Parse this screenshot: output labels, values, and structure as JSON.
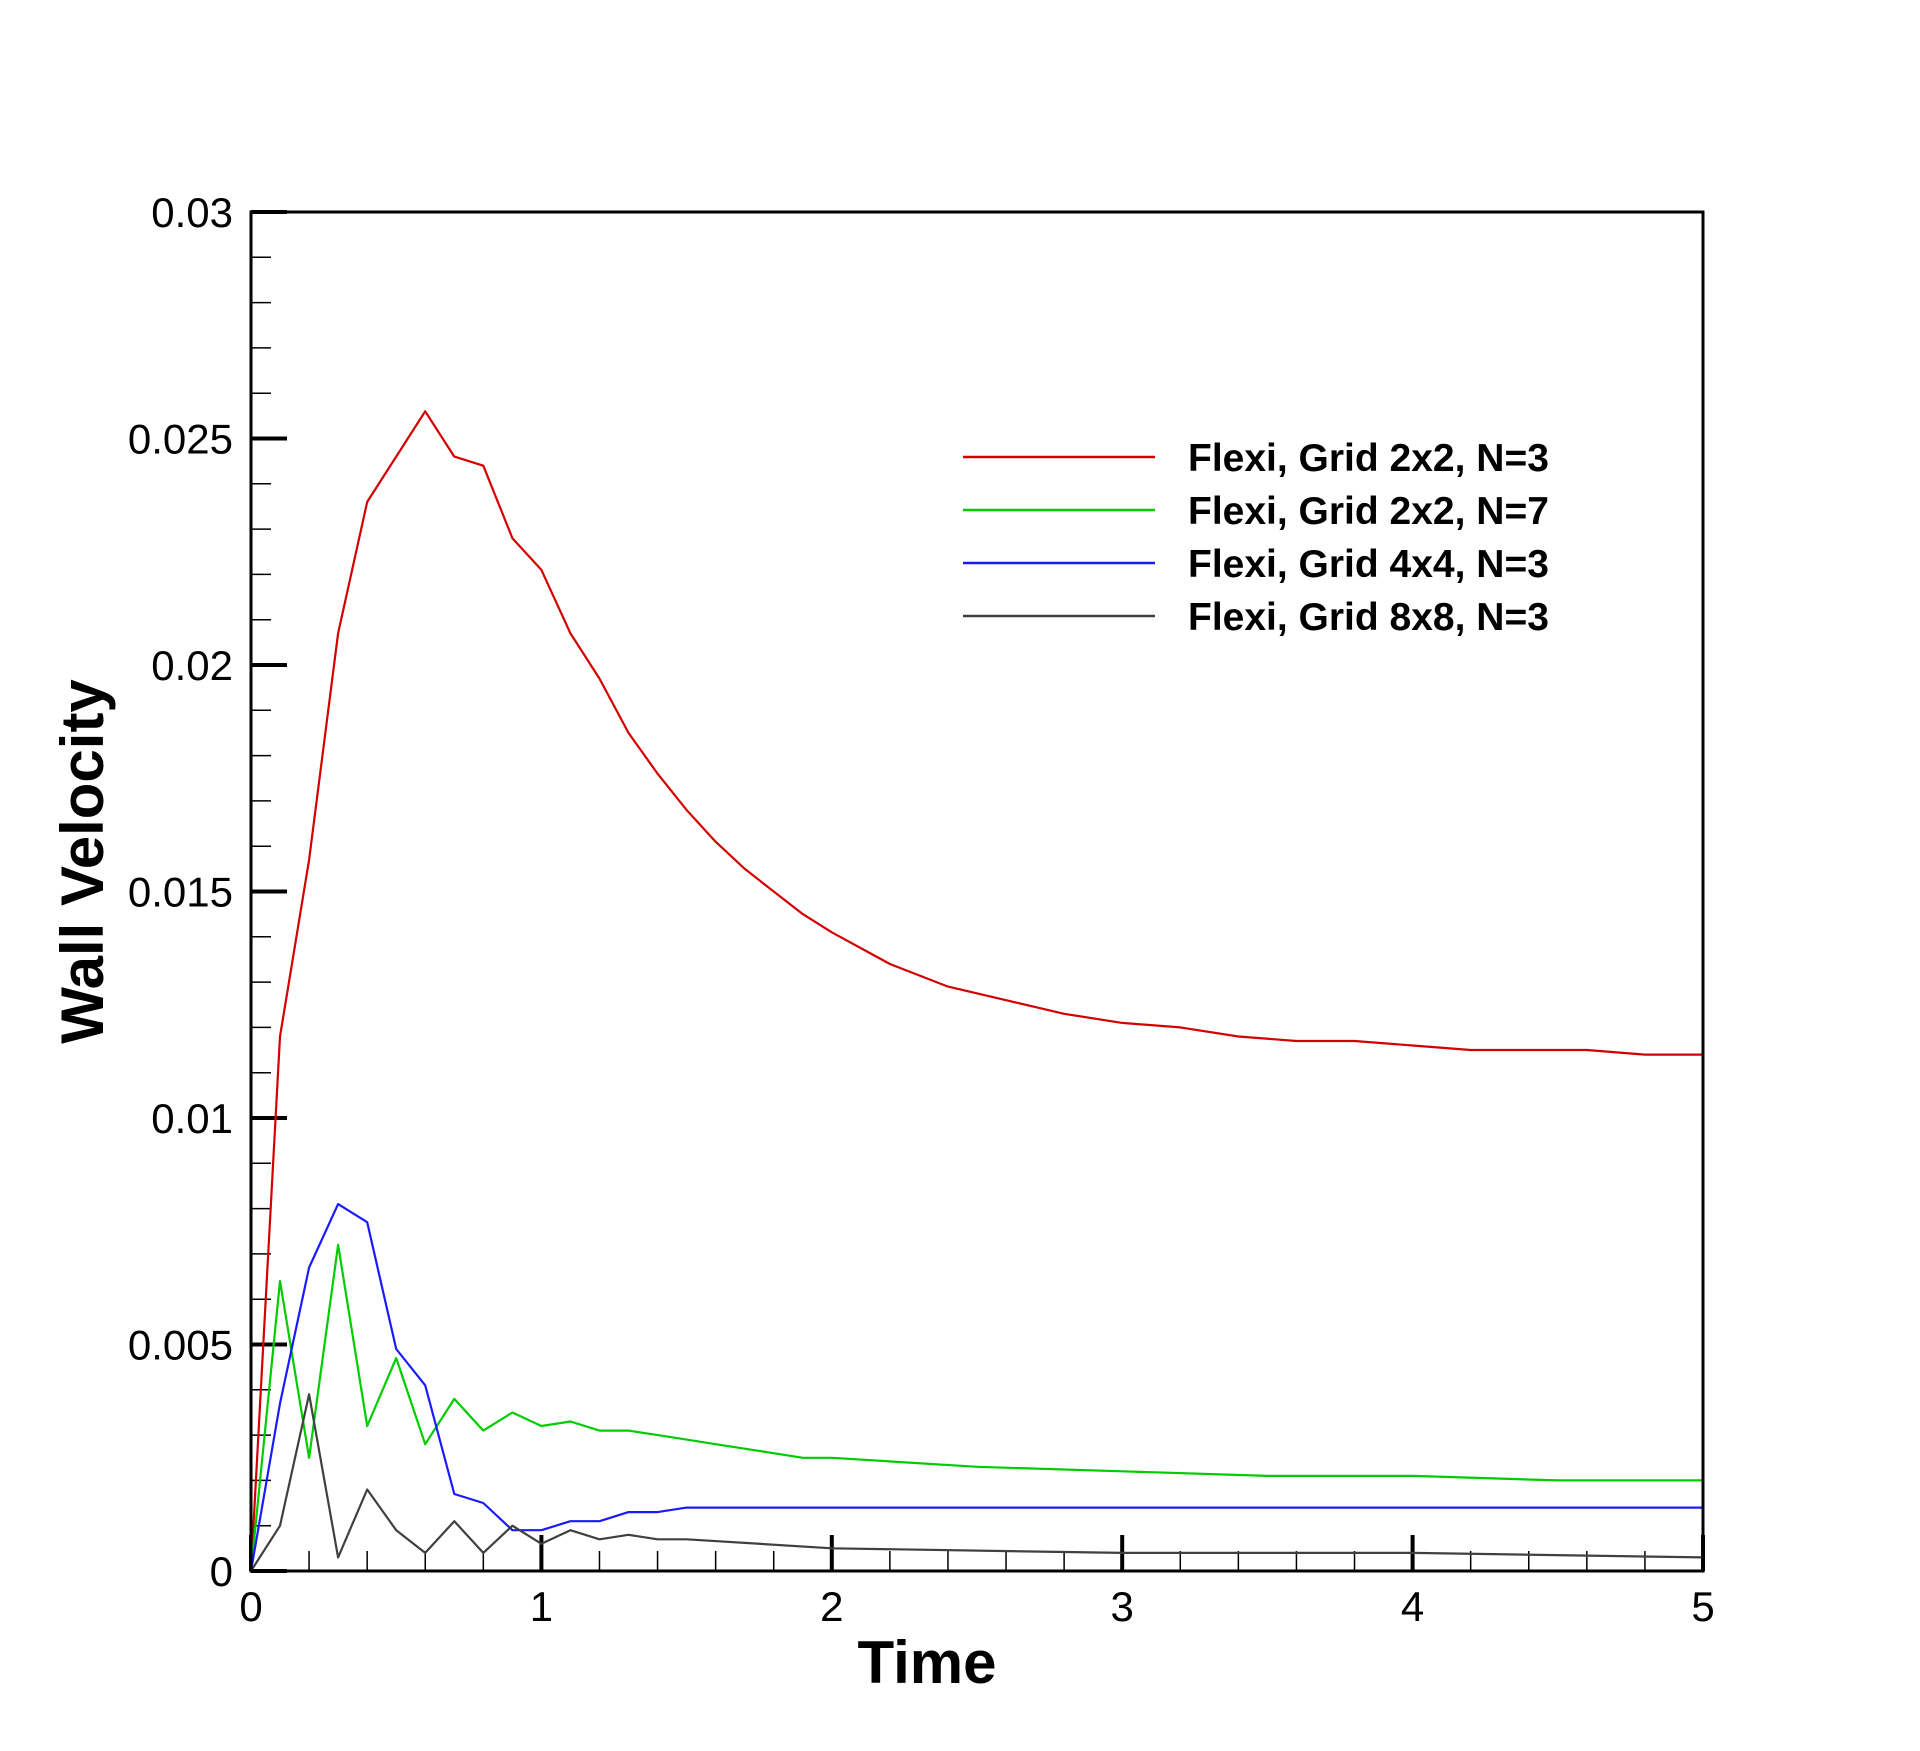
{
  "chart_data": {
    "type": "line",
    "title": "",
    "xlabel": "Time",
    "ylabel": "Wall Velocity",
    "xlim": [
      0,
      5
    ],
    "ylim": [
      0,
      0.03
    ],
    "xticks": [
      0,
      1,
      2,
      3,
      4,
      5
    ],
    "xtick_labels": [
      "0",
      "1",
      "2",
      "3",
      "4",
      "5"
    ],
    "yticks": [
      0,
      0.005,
      0.01,
      0.015,
      0.02,
      0.025,
      0.03
    ],
    "ytick_labels": [
      "0",
      "0.005",
      "0.01",
      "0.015",
      "0.02",
      "0.025",
      "0.03"
    ],
    "grid": false,
    "legend_position": "top-right",
    "series": [
      {
        "name": "Flexi, Grid 2x2, N=3",
        "color": "#d40000",
        "x": [
          0,
          0.1,
          0.2,
          0.3,
          0.4,
          0.5,
          0.6,
          0.7,
          0.8,
          0.9,
          1.0,
          1.1,
          1.2,
          1.3,
          1.4,
          1.5,
          1.6,
          1.7,
          1.8,
          1.9,
          2.0,
          2.2,
          2.4,
          2.6,
          2.8,
          3.0,
          3.2,
          3.4,
          3.6,
          3.8,
          4.0,
          4.2,
          4.4,
          4.6,
          4.8,
          5.0
        ],
        "y": [
          0,
          0.0118,
          0.0157,
          0.0207,
          0.0236,
          0.0246,
          0.0256,
          0.0246,
          0.0244,
          0.0228,
          0.0221,
          0.0207,
          0.0197,
          0.0185,
          0.0176,
          0.0168,
          0.0161,
          0.0155,
          0.015,
          0.0145,
          0.0141,
          0.0134,
          0.0129,
          0.0126,
          0.0123,
          0.0121,
          0.012,
          0.0118,
          0.0117,
          0.0117,
          0.0116,
          0.0115,
          0.0115,
          0.0115,
          0.0114,
          0.0114
        ]
      },
      {
        "name": "Flexi, Grid 2x2, N=7",
        "color": "#00cc00",
        "x": [
          0,
          0.1,
          0.2,
          0.3,
          0.4,
          0.5,
          0.6,
          0.7,
          0.8,
          0.9,
          1.0,
          1.1,
          1.2,
          1.3,
          1.4,
          1.5,
          1.6,
          1.7,
          1.8,
          1.9,
          2.0,
          2.5,
          3.0,
          3.5,
          4.0,
          4.5,
          5.0
        ],
        "y": [
          0,
          0.0064,
          0.0025,
          0.0072,
          0.0032,
          0.0047,
          0.0028,
          0.0038,
          0.0031,
          0.0035,
          0.0032,
          0.0033,
          0.0031,
          0.0031,
          0.003,
          0.0029,
          0.0028,
          0.0027,
          0.0026,
          0.0025,
          0.0025,
          0.0023,
          0.0022,
          0.0021,
          0.0021,
          0.002,
          0.002
        ]
      },
      {
        "name": "Flexi, Grid 4x4, N=3",
        "color": "#1a1aff",
        "x": [
          0,
          0.1,
          0.2,
          0.3,
          0.4,
          0.5,
          0.6,
          0.7,
          0.8,
          0.9,
          1.0,
          1.1,
          1.2,
          1.3,
          1.4,
          1.5,
          2.0,
          3.0,
          4.0,
          5.0
        ],
        "y": [
          0,
          0.0037,
          0.0067,
          0.0081,
          0.0077,
          0.0049,
          0.0041,
          0.0017,
          0.0015,
          0.0009,
          0.0009,
          0.0011,
          0.0011,
          0.0013,
          0.0013,
          0.0014,
          0.0014,
          0.0014,
          0.0014,
          0.0014
        ]
      },
      {
        "name": "Flexi, Grid 8x8, N=3",
        "color": "#404040",
        "x": [
          0,
          0.1,
          0.2,
          0.3,
          0.4,
          0.5,
          0.6,
          0.7,
          0.8,
          0.9,
          1.0,
          1.1,
          1.2,
          1.3,
          1.4,
          1.5,
          2.0,
          3.0,
          4.0,
          5.0
        ],
        "y": [
          0,
          0.001,
          0.0039,
          0.0003,
          0.0018,
          0.0009,
          0.0004,
          0.0011,
          0.0004,
          0.001,
          0.0006,
          0.0009,
          0.0007,
          0.0008,
          0.0007,
          0.0007,
          0.0005,
          0.0004,
          0.0004,
          0.0003
        ]
      }
    ]
  }
}
